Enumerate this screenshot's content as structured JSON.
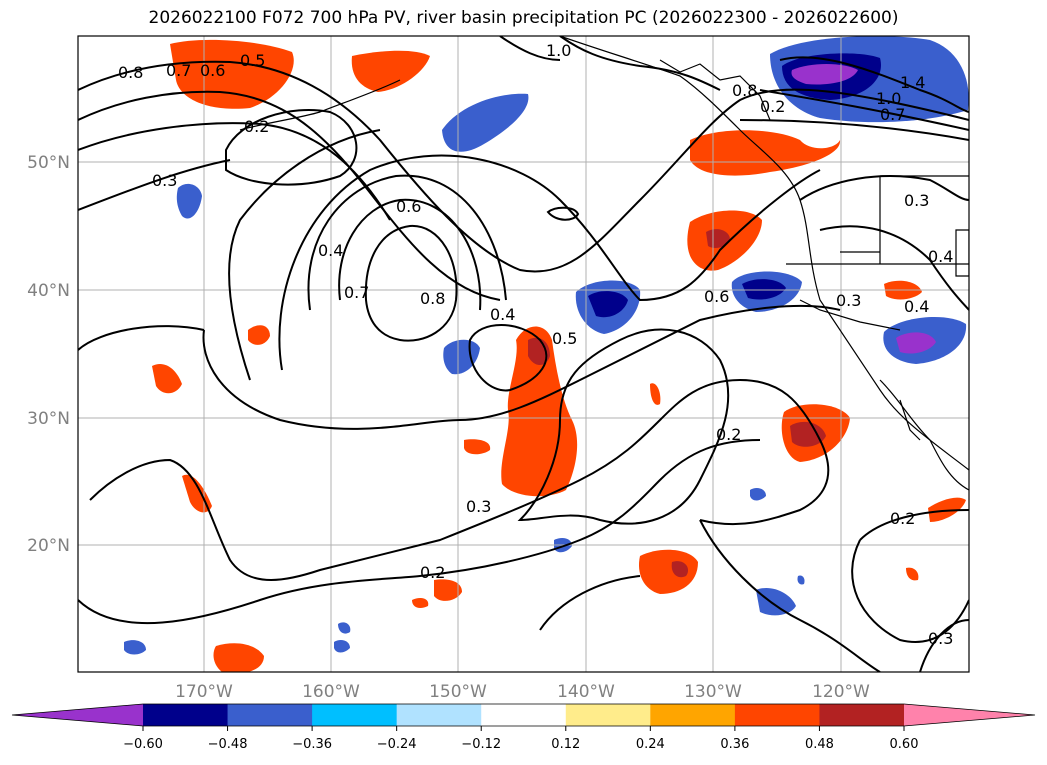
{
  "title": "2026022100 F072 700 hPa PV, river basin precipitation PC (2026022300 - 2026022600)",
  "map": {
    "lat_labels": [
      "50°N",
      "40°N",
      "30°N",
      "20°N"
    ],
    "lon_labels": [
      "170°W",
      "160°W",
      "150°W",
      "140°W",
      "130°W",
      "120°W"
    ],
    "contour_labels": [
      "1.0",
      "0.8",
      "0.7",
      "0.6",
      "0.5",
      "0.2",
      "0.3",
      "0.4",
      "0.7",
      "0.8",
      "0.4",
      "0.5",
      "0.6",
      "0.8",
      "1.0",
      "1.4",
      "0.7",
      "0.3",
      "0.2",
      "0.3",
      "0.2",
      "0.2",
      "0.3",
      "0.4",
      "0.2",
      "0.6",
      "0.4",
      "0.3"
    ],
    "shading_colors": [
      "#9932cc",
      "#00008b",
      "#3a5fcd",
      "#00bfff",
      "#b0e2ff",
      "#ffffff",
      "#ffec8b",
      "#ffa500",
      "#ff4500",
      "#b22222",
      "#ff82ab"
    ]
  },
  "colorbar": {
    "ticks": [
      "−0.60",
      "−0.48",
      "−0.36",
      "−0.24",
      "−0.12",
      "0.12",
      "0.24",
      "0.36",
      "0.48",
      "0.60"
    ],
    "colors": [
      "#9932cc",
      "#00008b",
      "#3a5fcd",
      "#00bfff",
      "#b0e2ff",
      "#ffffff",
      "#ffec8b",
      "#ffa500",
      "#ff4500",
      "#b22222",
      "#ff82ab"
    ]
  }
}
